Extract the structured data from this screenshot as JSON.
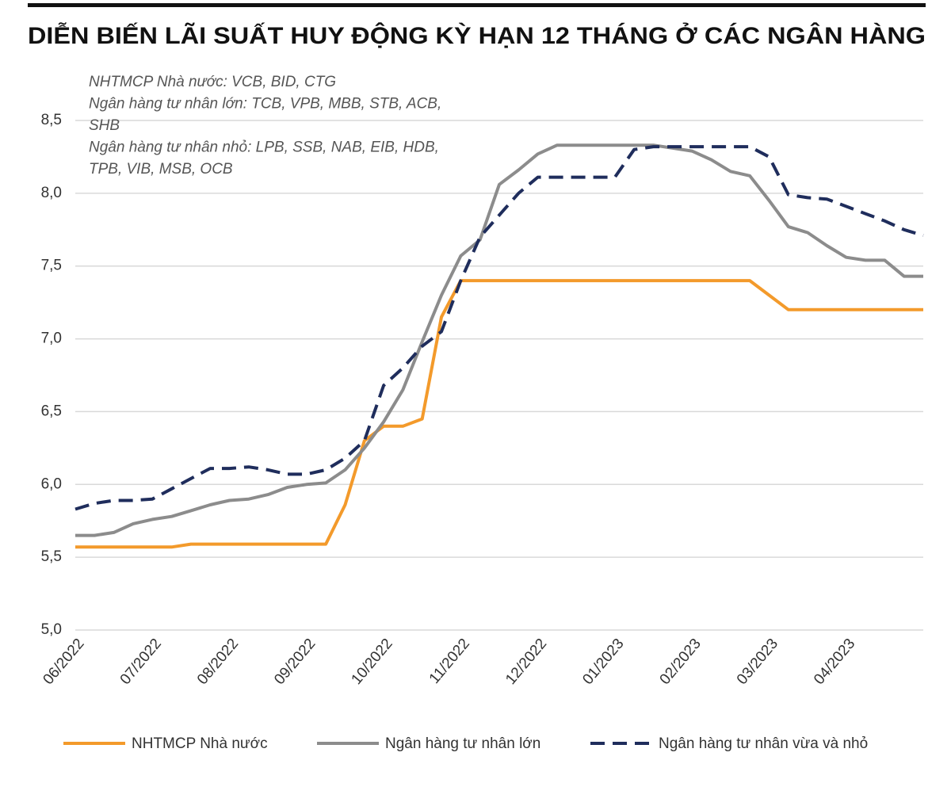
{
  "chart_data": {
    "type": "line",
    "title": "DIỄN BIẾN LÃI SUẤT HUY ĐỘNG KỲ HẠN 12 THÁNG Ở CÁC NGÂN HÀNG",
    "annotations": [
      "NHTMCP Nhà nước: VCB, BID, CTG",
      "Ngân hàng tư nhân lớn: TCB, VPB, MBB, STB, ACB,",
      "SHB",
      "Ngân hàng tư nhân nhỏ: LPB, SSB, NAB, EIB, HDB,",
      "TPB, VIB, MSB, OCB"
    ],
    "categories": [
      "06/2022",
      null,
      null,
      null,
      "07/2022",
      null,
      null,
      null,
      "08/2022",
      null,
      null,
      null,
      "09/2022",
      null,
      null,
      null,
      "10/2022",
      null,
      null,
      null,
      "11/2022",
      null,
      null,
      null,
      "12/2022",
      null,
      null,
      null,
      "01/2023",
      null,
      null,
      null,
      "02/2023",
      null,
      null,
      null,
      "03/2023",
      null,
      null,
      null,
      "04/2023",
      null,
      null,
      null,
      null
    ],
    "series": [
      {
        "name": "NHTMCP Nhà nước",
        "color": "#f39a2b",
        "dashed": false,
        "values": [
          5.57,
          5.57,
          5.57,
          5.57,
          5.57,
          5.57,
          5.59,
          5.59,
          5.59,
          5.59,
          5.59,
          5.59,
          5.59,
          5.59,
          5.86,
          6.3,
          6.4,
          6.4,
          6.45,
          7.15,
          7.4,
          7.4,
          7.4,
          7.4,
          7.4,
          7.4,
          7.4,
          7.4,
          7.4,
          7.4,
          7.4,
          7.4,
          7.4,
          7.4,
          7.4,
          7.4,
          7.3,
          7.2,
          7.2,
          7.2,
          7.2,
          7.2,
          7.2,
          7.2,
          7.2
        ]
      },
      {
        "name": "Ngân hàng tư nhân lớn",
        "color": "#8c8c8c",
        "dashed": false,
        "values": [
          5.65,
          5.65,
          5.67,
          5.73,
          5.76,
          5.78,
          5.82,
          5.86,
          5.89,
          5.9,
          5.93,
          5.98,
          6.0,
          6.01,
          6.1,
          6.25,
          6.43,
          6.65,
          6.98,
          7.3,
          7.57,
          7.68,
          8.06,
          8.16,
          8.27,
          8.33,
          8.33,
          8.33,
          8.33,
          8.33,
          8.33,
          8.31,
          8.29,
          8.23,
          8.15,
          8.12,
          7.95,
          7.77,
          7.73,
          7.64,
          7.56,
          7.54,
          7.54,
          7.43,
          7.43
        ]
      },
      {
        "name": "Ngân hàng tư nhân vừa và nhỏ",
        "color": "#1f2d5c",
        "dashed": true,
        "values": [
          5.83,
          5.87,
          5.89,
          5.89,
          5.9,
          5.97,
          6.04,
          6.11,
          6.11,
          6.12,
          6.1,
          6.07,
          6.07,
          6.1,
          6.18,
          6.3,
          6.68,
          6.8,
          6.95,
          7.05,
          7.4,
          7.7,
          7.85,
          8.0,
          8.11,
          8.11,
          8.11,
          8.11,
          8.11,
          8.3,
          8.32,
          8.32,
          8.32,
          8.32,
          8.32,
          8.32,
          8.25,
          7.99,
          7.97,
          7.96,
          7.91,
          7.86,
          7.81,
          7.75,
          7.71
        ]
      }
    ],
    "ylim": [
      5,
      8.5
    ],
    "yticks": [
      {
        "value": 5,
        "label": "5,0"
      },
      {
        "value": 5.5,
        "label": "5,5"
      },
      {
        "value": 6,
        "label": "6,0"
      },
      {
        "value": 6.5,
        "label": "6,5"
      },
      {
        "value": 7,
        "label": "7,0"
      },
      {
        "value": 7.5,
        "label": "7,5"
      },
      {
        "value": 8,
        "label": "8,0"
      },
      {
        "value": 8.5,
        "label": "8,5"
      }
    ],
    "grid": true
  }
}
